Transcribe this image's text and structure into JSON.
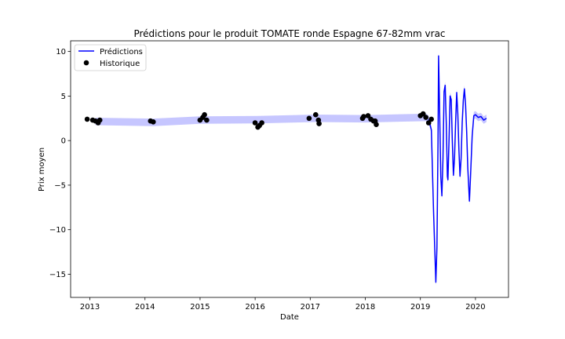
{
  "chart_data": {
    "type": "line",
    "title": "Prédictions pour le produit TOMATE ronde Espagne 67-82mm vrac",
    "xlabel": "Date",
    "ylabel": "Prix moyen",
    "xlim": [
      2012.65,
      2020.6
    ],
    "ylim": [
      -17.6,
      11.2
    ],
    "x_ticks": [
      2013,
      2014,
      2015,
      2016,
      2017,
      2018,
      2019,
      2020
    ],
    "x_tick_labels": [
      "2013",
      "2014",
      "2015",
      "2016",
      "2017",
      "2018",
      "2019",
      "2020"
    ],
    "y_ticks": [
      10,
      5,
      0,
      -5,
      -10,
      -15
    ],
    "y_tick_labels": [
      "10",
      "5",
      "0",
      "−5",
      "−10",
      "−15"
    ],
    "grid": false,
    "legend": {
      "placement": "top-left",
      "entries": [
        {
          "label": "Prédictions",
          "marker": "line",
          "color": "#0000ff"
        },
        {
          "label": "Historique",
          "marker": "dot",
          "color": "#000000"
        }
      ]
    },
    "series": [
      {
        "name": "Prédictions",
        "kind": "line",
        "color": "#0000ff",
        "band_color": "#b3b3ff",
        "band_half_width": 0.42,
        "points": [
          [
            2013.1,
            2.15
          ],
          [
            2014.15,
            2.05
          ],
          [
            2015.0,
            2.3
          ],
          [
            2016.05,
            2.35
          ],
          [
            2017.1,
            2.5
          ],
          [
            2018.0,
            2.45
          ],
          [
            2019.1,
            2.6
          ],
          [
            2019.15,
            2.4
          ],
          [
            2019.2,
            1.2
          ],
          [
            2019.24,
            -8.0
          ],
          [
            2019.28,
            -15.9
          ],
          [
            2019.3,
            -12.0
          ],
          [
            2019.32,
            0.0
          ],
          [
            2019.33,
            9.5
          ],
          [
            2019.35,
            3.0
          ],
          [
            2019.37,
            -4.0
          ],
          [
            2019.39,
            -6.2
          ],
          [
            2019.41,
            -2.0
          ],
          [
            2019.43,
            5.5
          ],
          [
            2019.45,
            6.2
          ],
          [
            2019.47,
            2.0
          ],
          [
            2019.49,
            -4.0
          ],
          [
            2019.5,
            -4.4
          ],
          [
            2019.52,
            0.0
          ],
          [
            2019.54,
            5.0
          ],
          [
            2019.56,
            4.6
          ],
          [
            2019.58,
            0.0
          ],
          [
            2019.6,
            -3.9
          ],
          [
            2019.62,
            -2.0
          ],
          [
            2019.64,
            2.0
          ],
          [
            2019.66,
            5.4
          ],
          [
            2019.68,
            3.0
          ],
          [
            2019.7,
            -1.0
          ],
          [
            2019.72,
            -4.0
          ],
          [
            2019.74,
            -2.0
          ],
          [
            2019.76,
            2.0
          ],
          [
            2019.78,
            4.5
          ],
          [
            2019.8,
            5.8
          ],
          [
            2019.82,
            4.0
          ],
          [
            2019.84,
            1.0
          ],
          [
            2019.86,
            -3.0
          ],
          [
            2019.89,
            -6.8
          ],
          [
            2019.91,
            -4.0
          ],
          [
            2019.94,
            0.5
          ],
          [
            2019.97,
            2.8
          ],
          [
            2020.0,
            2.9
          ],
          [
            2020.05,
            2.6
          ],
          [
            2020.1,
            2.7
          ],
          [
            2020.15,
            2.3
          ],
          [
            2020.2,
            2.5
          ]
        ]
      },
      {
        "name": "Historique",
        "kind": "scatter",
        "color": "#000000",
        "points": [
          [
            2012.95,
            2.4
          ],
          [
            2013.05,
            2.3
          ],
          [
            2013.1,
            2.2
          ],
          [
            2013.15,
            2.0
          ],
          [
            2013.18,
            2.3
          ],
          [
            2014.1,
            2.2
          ],
          [
            2014.15,
            2.1
          ],
          [
            2015.0,
            2.3
          ],
          [
            2015.05,
            2.6
          ],
          [
            2015.08,
            2.9
          ],
          [
            2015.12,
            2.3
          ],
          [
            2016.0,
            2.0
          ],
          [
            2016.05,
            1.5
          ],
          [
            2016.08,
            1.7
          ],
          [
            2016.12,
            2.0
          ],
          [
            2016.98,
            2.5
          ],
          [
            2017.1,
            2.9
          ],
          [
            2017.15,
            2.3
          ],
          [
            2017.16,
            1.9
          ],
          [
            2017.95,
            2.5
          ],
          [
            2017.97,
            2.7
          ],
          [
            2018.05,
            2.8
          ],
          [
            2018.1,
            2.4
          ],
          [
            2018.15,
            2.2
          ],
          [
            2018.18,
            2.2
          ],
          [
            2018.2,
            1.8
          ],
          [
            2019.0,
            2.8
          ],
          [
            2019.05,
            3.0
          ],
          [
            2019.1,
            2.6
          ],
          [
            2019.15,
            2.0
          ],
          [
            2019.2,
            2.4
          ]
        ]
      }
    ]
  }
}
